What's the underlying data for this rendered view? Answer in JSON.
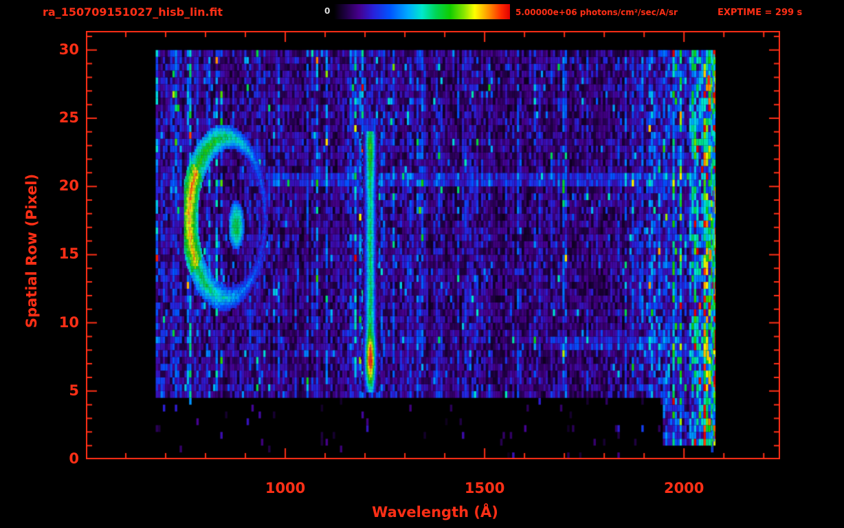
{
  "theme": {
    "background": "#000000",
    "accent": "#ff2f16",
    "colorbar_min_label_color": "#dddddd"
  },
  "header": {
    "title": "ra_150709151027_hisb_lin.fit",
    "colorbar_min_label": "0",
    "colorbar_max_label": "5.00000e+06 photons/cm²/sec/A/sr",
    "exptime_label": "EXPTIME = 299 s"
  },
  "chart_data": {
    "type": "heatmap",
    "title": "ra_150709151027_hisb_lin.fit",
    "xlabel": "Wavelength (Å)",
    "ylabel": "Spatial Row (Pixel)",
    "xlim": [
      500,
      2241
    ],
    "ylim": [
      0,
      31.4
    ],
    "x_major_ticks": [
      1000,
      1500,
      2000
    ],
    "x_minor_step": 100,
    "y_major_ticks": [
      0,
      5,
      10,
      15,
      20,
      25,
      30
    ],
    "y_minor_step": 1,
    "grid": false,
    "colorbar": {
      "min": 0,
      "max": 5000000,
      "max_label": "5.00000e+06",
      "units": "photons/cm²/sec/A/sr",
      "position": "top"
    },
    "exposure_seconds": 299,
    "extent": {
      "wavelength": [
        675,
        2076
      ],
      "rows": [
        0,
        30
      ]
    },
    "value_units": "fraction of colorbar max (5.00000e+06 photons/cm²/sec/A/sr)",
    "colormap_stops": [
      [
        0.0,
        "#000000"
      ],
      [
        0.06,
        "#1c003d"
      ],
      [
        0.14,
        "#46008c"
      ],
      [
        0.22,
        "#2a1fd8"
      ],
      [
        0.32,
        "#0055ff"
      ],
      [
        0.42,
        "#00aaff"
      ],
      [
        0.5,
        "#00e8cc"
      ],
      [
        0.58,
        "#00d455"
      ],
      [
        0.66,
        "#11cc00"
      ],
      [
        0.74,
        "#8ae600"
      ],
      [
        0.8,
        "#ffff00"
      ],
      [
        0.88,
        "#ff9100"
      ],
      [
        0.95,
        "#ff2a00"
      ],
      [
        1.0,
        "#e00000"
      ]
    ],
    "noise": {
      "seed": 20150709,
      "bin_wl": 6,
      "bin_row": 0.5,
      "base": 0.1,
      "col_var": 0.22,
      "speckle_p": 0.05,
      "bottom_row": 4.5,
      "bottom_full_wl": [
        1945,
        2076
      ],
      "zones": [
        {
          "wl": [
            675,
            960
          ],
          "amp": 1.1
        },
        {
          "wl": [
            1160,
            1270
          ],
          "amp": 1.35
        },
        {
          "wl": [
            1290,
            1650
          ],
          "amp": 0.85
        },
        {
          "wl": [
            1900,
            2008
          ],
          "amp": 1.6
        },
        {
          "wl": [
            2008,
            2076
          ],
          "amp": 2.6
        }
      ],
      "bands": [
        {
          "rows": [
            19.6,
            20.8
          ],
          "wl": [
            950,
            2008
          ],
          "boost": 0.1
        },
        {
          "rows": [
            7.6,
            8.8
          ],
          "wl": [
            1650,
            2008
          ],
          "boost": 0.08
        }
      ]
    },
    "features": {
      "ring": {
        "label": "ring-shaped emission region",
        "center_wl": 853,
        "center_row": 17.6,
        "rx_wl": 95,
        "ry_rows": 5.9,
        "peak_value": 0.82,
        "faint_side": "right"
      },
      "inner_blob": {
        "center_wl": 876,
        "center_row": 17.0,
        "rx_wl": 20,
        "ry_rows": 1.8,
        "value": 0.6
      },
      "emission_line": {
        "label": "bright vertical emission line",
        "center_wl": 1212,
        "half_width_wl": 26,
        "rows": [
          4.9,
          24.0
        ],
        "row_profile": [
          [
            5,
            0.5
          ],
          [
            6,
            0.78
          ],
          [
            7,
            1.0
          ],
          [
            8,
            0.93
          ],
          [
            9,
            0.68
          ],
          [
            10,
            0.6
          ],
          [
            13,
            0.57
          ],
          [
            16,
            0.58
          ],
          [
            19,
            0.55
          ],
          [
            21,
            0.63
          ],
          [
            23,
            0.7
          ],
          [
            24,
            0.6
          ]
        ]
      },
      "edge_column": {
        "label": "bright speckled band at red edge",
        "wl": [
          2068,
          2076
        ],
        "rows": [
          0.5,
          29.5
        ],
        "value": 0.45
      },
      "hot_spots": [
        {
          "wl": 2062,
          "row": 27.8,
          "value": 0.95
        },
        {
          "wl": 2066,
          "row": 15.0,
          "value": 0.9
        },
        {
          "wl": 2060,
          "row": 7.6,
          "value": 0.85
        },
        {
          "wl": 2052,
          "row": 14.4,
          "value": 0.78
        }
      ]
    }
  }
}
